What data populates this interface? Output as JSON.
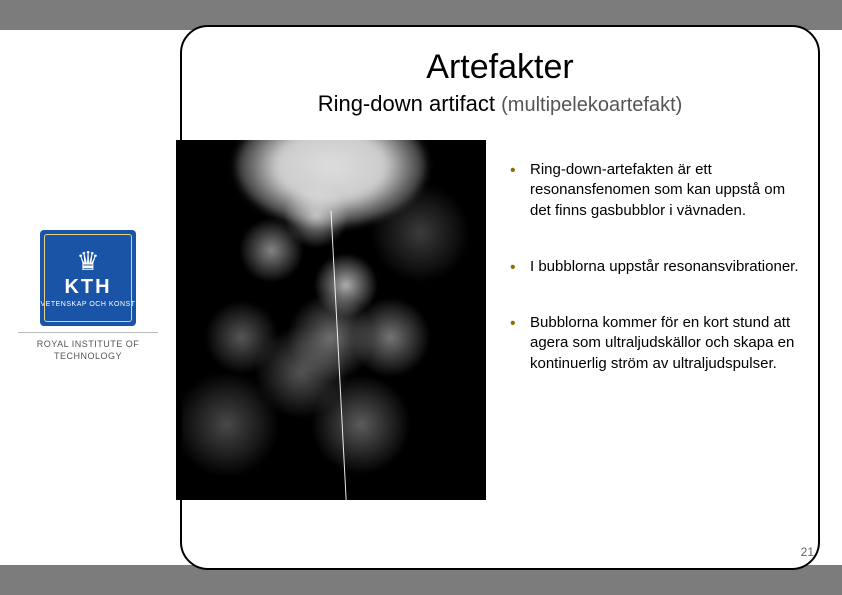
{
  "slide": {
    "title": "Artefakter",
    "subtitle_main": "Ring-down artifact",
    "subtitle_paren": "(multipelekoartefakt)",
    "page_number": "21"
  },
  "bullets": [
    "Ring-down-artefakten är ett resonansfenomen som kan uppstå om det finns gasbubblor i vävnaden.",
    "I bubblorna uppstår resonansvibrationer.",
    "Bubblorna kommer för en kort stund att agera som ultraljudskällor och skapa en kontinuerlig ström av ultraljudspulser."
  ],
  "logo": {
    "kth_label": "KTH",
    "kth_subline": "VETENSKAP OCH KONST",
    "caption": "ROYAL INSTITUTE OF TECHNOLOGY"
  },
  "colors": {
    "bar": "#7c7c7c",
    "bullet_marker": "#8b6f00",
    "kth_blue": "#1954a6",
    "frame_border": "#000000",
    "background": "#ffffff"
  }
}
